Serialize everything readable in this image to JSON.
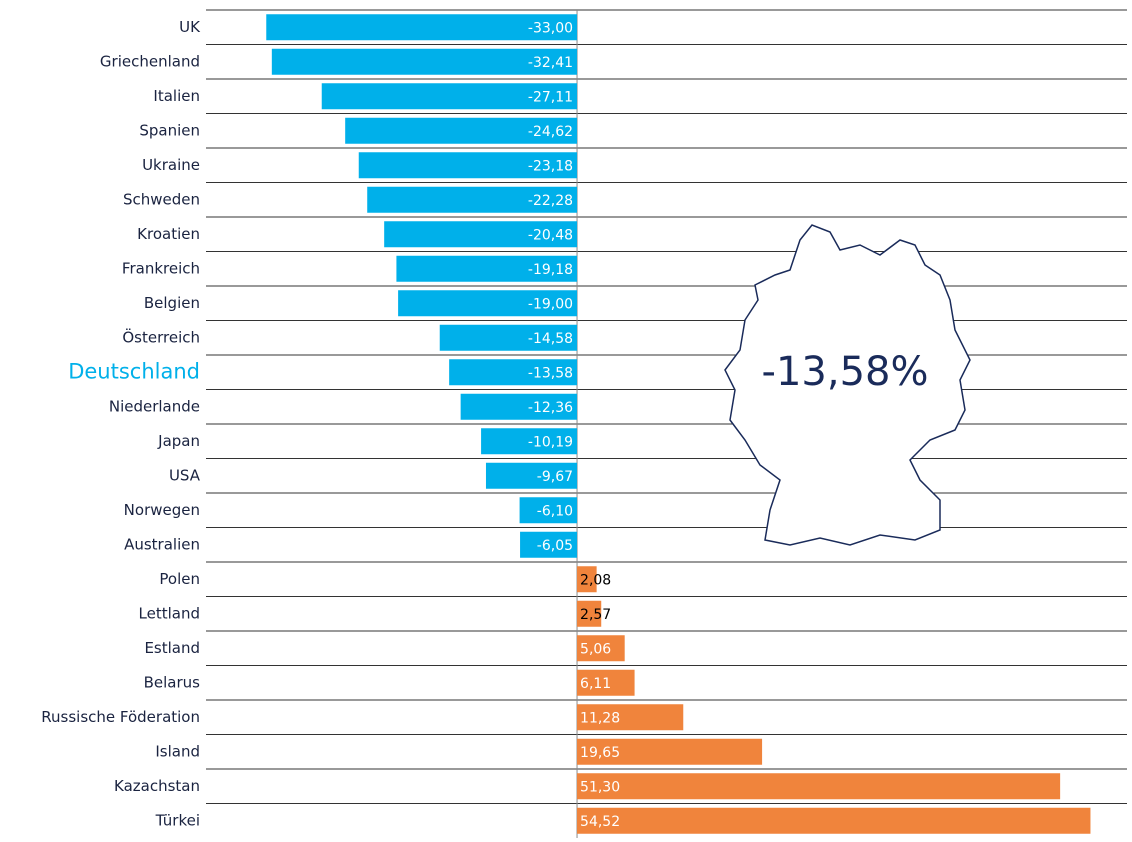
{
  "chart_data": {
    "type": "hbar",
    "categories": [
      "UK",
      "Griechenland",
      "Italien",
      "Spanien",
      "Ukraine",
      "Schweden",
      "Kroatien",
      "Frankreich",
      "Belgien",
      "Österreich",
      "Deutschland",
      "Niederlande",
      "Japan",
      "USA",
      "Norwegen",
      "Australien",
      "Polen",
      "Lettland",
      "Estland",
      "Belarus",
      "Russische Föderation",
      "Island",
      "Kazachstan",
      "Türkei"
    ],
    "values": [
      -33.0,
      -32.41,
      -27.11,
      -24.62,
      -23.18,
      -22.28,
      -20.48,
      -19.18,
      -19.0,
      -14.58,
      -13.58,
      -12.36,
      -10.19,
      -9.67,
      -6.1,
      -6.05,
      2.08,
      2.57,
      5.06,
      6.11,
      11.28,
      19.65,
      51.3,
      54.52
    ],
    "value_labels": [
      "-33,00",
      "-32,41",
      "-27,11",
      "-24,62",
      "-23,18",
      "-22,28",
      "-20,48",
      "-19,18",
      "-19,00",
      "-14,58",
      "-13,58",
      "-12,36",
      "-10,19",
      "-9,67",
      "-6,10",
      "-6,05",
      "2,08",
      "2,57",
      "5,06",
      "6,11",
      "11,28",
      "19,65",
      "51,30",
      "54,52"
    ],
    "negative_color": "#00b0ea",
    "positive_color": "#f0843c",
    "highlight_index": 10,
    "highlight_color": "#00b0ea",
    "xlim": [
      -39.4,
      58.4
    ],
    "annotation": "-13,58%"
  }
}
